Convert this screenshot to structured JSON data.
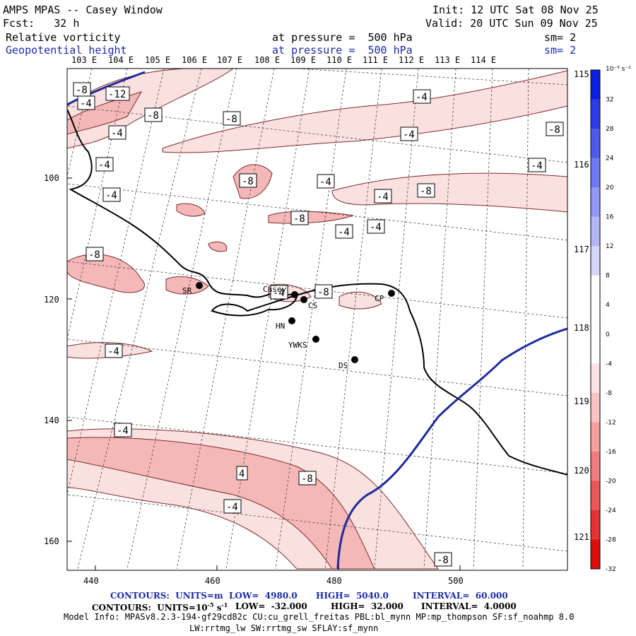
{
  "header": {
    "title": "AMPS MPAS -- Casey Window",
    "fcst": "Fcst:   32 h",
    "init": "Init: 12 UTC Sat 08 Nov 25",
    "valid": "Valid: 20 UTC Sun 09 Nov 25",
    "field1": {
      "name": "Relative vorticity",
      "level": "at pressure =  500 hPa",
      "sm": "sm= 2"
    },
    "field2": {
      "name": "Geopotential height",
      "level": "at pressure =  500 hPa",
      "sm": "sm= 2"
    }
  },
  "map": {
    "lon_top_labels": [
      "103 E",
      "104 E",
      "105 E",
      "106 E",
      "107 E",
      "108 E",
      "109 E",
      "110 E",
      "111 E",
      "112 E",
      "113 E",
      "114 E"
    ],
    "lon_right_labels": [
      "115 E",
      "116 E",
      "117 E",
      "118 E",
      "119 E",
      "120 E",
      "121 E"
    ],
    "x_ticks": [
      "440",
      "460",
      "480",
      "500"
    ],
    "y_ticks": [
      "100",
      "120",
      "140",
      "160"
    ],
    "stations": [
      "SR",
      "Casey",
      "CS",
      "CP",
      "HN",
      "YWKS",
      "DS"
    ],
    "contour_labels": [
      "-8",
      "-12",
      "-8",
      "-8",
      "-4",
      "-4",
      "-4",
      "-4",
      "-4",
      "-8",
      "-8",
      "-8",
      "-4",
      "-4",
      "-4",
      "-8",
      "-8",
      "-4",
      "-4",
      "-4",
      "-4",
      "4",
      "-8",
      "-4",
      "-8",
      "-8",
      "-4",
      "-4"
    ],
    "colors": {
      "coast": "#000000",
      "height": "#1c2a9c",
      "grid": "#555555",
      "vort": "#f6c9c9"
    }
  },
  "colorbar": {
    "units": "10⁻⁵ s⁻¹",
    "labels": [
      "32",
      "28",
      "24",
      "20",
      "16",
      "12",
      "8",
      "4",
      "0",
      "-4",
      "-8",
      "-12",
      "-16",
      "-20",
      "-24",
      "-28",
      "-32"
    ],
    "colors": [
      "#0b1fe3",
      "#2b3de8",
      "#4d5aec",
      "#6f78f0",
      "#9097f4",
      "#b2b6f8",
      "#d4d6fb",
      "#ffffff",
      "#ffffff",
      "#ffffff",
      "#fde4e4",
      "#f9c3c3",
      "#f4a0a0",
      "#ef7d7d",
      "#ea5757",
      "#e53232",
      "#e00c0c"
    ]
  },
  "footer": {
    "line1_a": "CONTOURS:  UNITS=m  LOW=  4980.0",
    "line1_b": "HIGH=  5040.0",
    "line1_c": "INTERVAL=  60.000",
    "line2_a": "CONTOURS:  UNITS=10",
    "line2_b": "LOW=  -32.000",
    "line2_c": "HIGH=  32.000",
    "line2_d": "INTERVAL=  4.0000",
    "model_info": "Model Info: MPASv8.2.3-194-gf29cd82c CU:cu_grell_freitas PBL:bl_mynn MP:mp_thompson SF:sf_noahmp 8.0",
    "model_info2": "LW:rrtmg_lw SW:rrtmg_sw SFLAY:sf_mynn"
  }
}
